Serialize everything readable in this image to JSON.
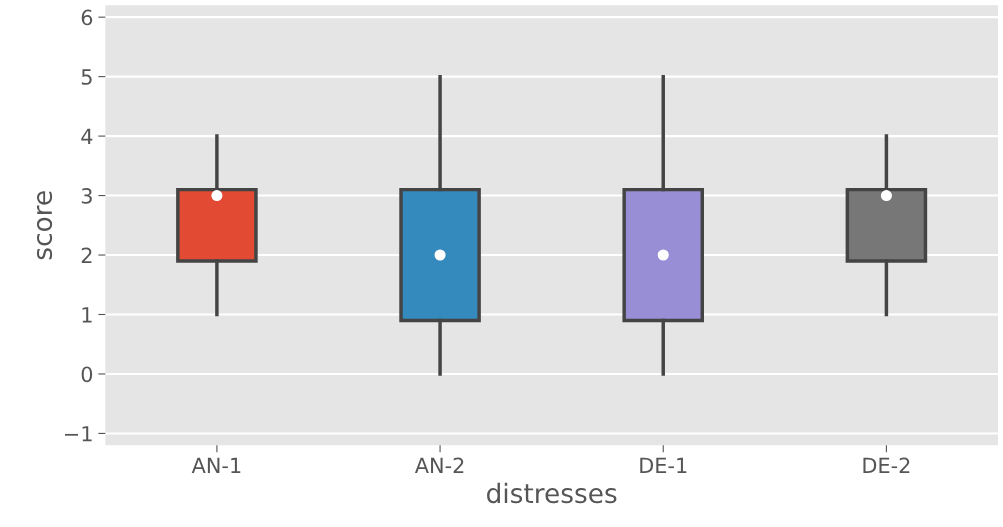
{
  "chart_data": {
    "type": "box",
    "xlabel": "distresses",
    "ylabel": "score",
    "categories": [
      "AN-1",
      "AN-2",
      "DE-1",
      "DE-2"
    ],
    "colors": [
      "#e24a33",
      "#348abd",
      "#988ed5",
      "#777777"
    ],
    "boxes": [
      {
        "low": 1,
        "q1": 1.9,
        "median": 3,
        "q3": 3.1,
        "high": 4
      },
      {
        "low": 0,
        "q1": 0.9,
        "median": 2,
        "q3": 3.1,
        "high": 5
      },
      {
        "low": 0,
        "q1": 0.9,
        "median": 2,
        "q3": 3.1,
        "high": 5
      },
      {
        "low": 1,
        "q1": 1.9,
        "median": 3,
        "q3": 3.1,
        "high": 4
      }
    ],
    "ylim": [
      -1.2,
      6.2
    ],
    "yticks": [
      {
        "value": -1,
        "label": "−1"
      },
      0,
      1,
      2,
      3,
      4,
      5,
      6
    ],
    "grid": "y"
  }
}
